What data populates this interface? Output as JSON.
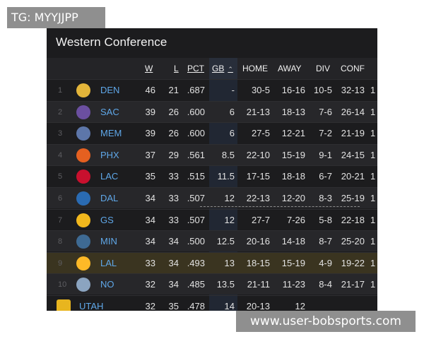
{
  "watermarks": {
    "top": "TG: MYYJJPP",
    "bottom": "www.user-bobsports.com"
  },
  "standings": {
    "title": "Western Conference",
    "headers": {
      "w": "W",
      "l": "L",
      "pct": "PCT",
      "gb": "GB",
      "home": "HOME",
      "away": "AWAY",
      "div": "DIV",
      "conf": "CONF"
    },
    "sort_icon": "chevron-up-icon",
    "teams": [
      {
        "rank": "1",
        "abbr": "DEN",
        "logo": "nuggets-logo",
        "color": "#e3b53a",
        "w": "46",
        "l": "21",
        "pct": ".687",
        "gb": "-",
        "home": "30-5",
        "away": "16-16",
        "div": "10-5",
        "conf": "32-13",
        "extra": "1"
      },
      {
        "rank": "2",
        "abbr": "SAC",
        "logo": "kings-logo",
        "color": "#6b4fa0",
        "w": "39",
        "l": "26",
        "pct": ".600",
        "gb": "6",
        "home": "21-13",
        "away": "18-13",
        "div": "7-6",
        "conf": "26-14",
        "extra": "1"
      },
      {
        "rank": "3",
        "abbr": "MEM",
        "logo": "grizzlies-logo",
        "color": "#5d76a9",
        "w": "39",
        "l": "26",
        "pct": ".600",
        "gb": "6",
        "home": "27-5",
        "away": "12-21",
        "div": "7-2",
        "conf": "21-19",
        "extra": "1"
      },
      {
        "rank": "4",
        "abbr": "PHX",
        "logo": "suns-logo",
        "color": "#e56020",
        "w": "37",
        "l": "29",
        "pct": ".561",
        "gb": "8.5",
        "home": "22-10",
        "away": "15-19",
        "div": "9-1",
        "conf": "24-15",
        "extra": "1"
      },
      {
        "rank": "5",
        "abbr": "LAC",
        "logo": "clippers-logo",
        "color": "#c8102e",
        "w": "35",
        "l": "33",
        "pct": ".515",
        "gb": "11.5",
        "home": "17-15",
        "away": "18-18",
        "div": "6-7",
        "conf": "20-21",
        "extra": "1"
      },
      {
        "rank": "6",
        "abbr": "DAL",
        "logo": "mavericks-logo",
        "color": "#2a6bb3",
        "w": "34",
        "l": "33",
        "pct": ".507",
        "gb": "12",
        "home": "22-13",
        "away": "12-20",
        "div": "8-3",
        "conf": "25-19",
        "extra": "1"
      },
      {
        "rank": "7",
        "abbr": "GS",
        "logo": "warriors-logo",
        "color": "#f2b81d",
        "w": "34",
        "l": "33",
        "pct": ".507",
        "gb": "12",
        "home": "27-7",
        "away": "7-26",
        "div": "5-8",
        "conf": "22-18",
        "extra": "1"
      },
      {
        "rank": "8",
        "abbr": "MIN",
        "logo": "timberwolves-logo",
        "color": "#3e6a93",
        "w": "34",
        "l": "34",
        "pct": ".500",
        "gb": "12.5",
        "home": "20-16",
        "away": "14-18",
        "div": "8-7",
        "conf": "25-20",
        "extra": "1"
      },
      {
        "rank": "9",
        "abbr": "LAL",
        "logo": "lakers-logo",
        "color": "#fdb927",
        "w": "33",
        "l": "34",
        "pct": ".493",
        "gb": "13",
        "home": "18-15",
        "away": "15-19",
        "div": "4-9",
        "conf": "19-22",
        "extra": "1"
      },
      {
        "rank": "10",
        "abbr": "NO",
        "logo": "pelicans-logo",
        "color": "#8ba4c0",
        "w": "32",
        "l": "34",
        "pct": ".485",
        "gb": "13.5",
        "home": "21-11",
        "away": "11-23",
        "div": "8-4",
        "conf": "21-17",
        "extra": "1"
      },
      {
        "rank": "",
        "abbr": "UTAH",
        "logo": "jazz-logo",
        "color": "#e8b51f",
        "w": "32",
        "l": "35",
        "pct": ".478",
        "gb": "14",
        "home": "20-13",
        "away": "12",
        "div": "",
        "conf": "",
        "extra": ""
      }
    ]
  }
}
